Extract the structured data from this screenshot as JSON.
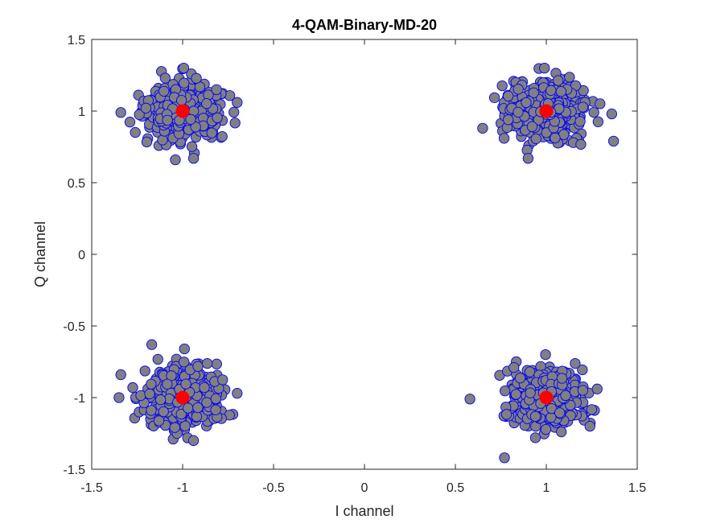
{
  "chart_data": {
    "type": "scatter",
    "title": "4-QAM-Binary-MD-20",
    "xlabel": "I channel",
    "ylabel": "Q channel",
    "xlim": [
      -1.5,
      1.5
    ],
    "ylim": [
      -1.5,
      1.5
    ],
    "xticks": [
      -1.5,
      -1,
      -0.5,
      0,
      0.5,
      1,
      1.5
    ],
    "xtick_labels": [
      "-1.5",
      "-1",
      "-0.5",
      "0",
      "0.5",
      "1",
      "1.5"
    ],
    "yticks": [
      -1.5,
      -1,
      -0.5,
      0,
      0.5,
      1,
      1.5
    ],
    "ytick_labels": [
      "-1.5",
      "-1",
      "-0.5",
      "0",
      "0.5",
      "1",
      "1.5"
    ],
    "grid": false,
    "series": [
      {
        "marker_face": "#808080",
        "marker_edge": "#0000ff",
        "points_per_cluster": 500,
        "noise_std": 0.1,
        "clusters": [
          {
            "center": [
              -1,
              1
            ]
          },
          {
            "center": [
              1,
              1
            ]
          },
          {
            "center": [
              -1,
              -1
            ]
          },
          {
            "center": [
              1,
              -1
            ]
          }
        ],
        "outliers": [
          [
            -1.34,
            0.99
          ],
          [
            -1.04,
            0.66
          ],
          [
            -0.94,
            0.67
          ],
          [
            -0.7,
            1.06
          ],
          [
            0.9,
            0.67
          ],
          [
            1.37,
            0.79
          ],
          [
            1.36,
            0.98
          ],
          [
            0.65,
            0.88
          ],
          [
            -1.35,
            -1.0
          ],
          [
            -1.34,
            -0.84
          ],
          [
            -1.17,
            -0.63
          ],
          [
            -0.99,
            -0.66
          ],
          [
            -0.94,
            -1.3
          ],
          [
            -0.7,
            -0.97
          ],
          [
            0.58,
            -1.01
          ],
          [
            0.77,
            -1.42
          ],
          [
            0.94,
            -1.28
          ],
          [
            1.28,
            -0.94
          ],
          [
            1.24,
            -1.2
          ]
        ]
      },
      {
        "marker_face": "#ff0000",
        "marker_edge": "#ff0000",
        "points": [
          [
            -1,
            1
          ],
          [
            1,
            1
          ],
          [
            -1,
            -1
          ],
          [
            1,
            -1
          ]
        ]
      }
    ]
  }
}
